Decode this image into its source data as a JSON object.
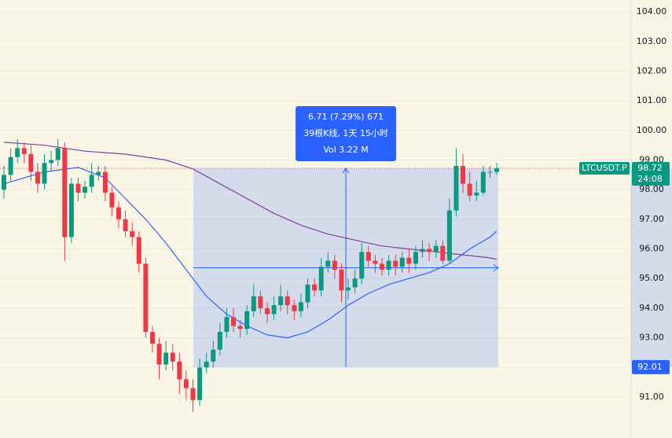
{
  "chart_data": {
    "type": "candlestick",
    "symbol": "LTCUSDT.P",
    "last_price": 98.72,
    "countdown": "24:08",
    "up_color": "#089981",
    "down_color": "#f23645",
    "open": [
      98.0,
      98.5,
      99.1,
      99.4,
      99.2,
      98.6,
      98.2,
      98.9,
      99.0,
      99.4,
      96.4,
      98.2,
      97.9,
      98.1,
      98.5,
      98.6,
      97.9,
      97.4,
      97.0,
      96.6,
      96.4,
      95.5,
      93.2,
      92.8,
      92.1,
      92.5,
      92.2,
      91.6,
      91.3,
      90.9,
      92.0,
      92.2,
      92.6,
      93.2,
      93.7,
      93.4,
      93.3,
      93.9,
      94.4,
      94.0,
      93.8,
      94.1,
      94.4,
      94.1,
      93.9,
      94.2,
      94.8,
      94.6,
      95.4,
      95.6,
      95.3,
      94.6,
      94.7,
      95.0,
      95.9,
      95.6,
      95.5,
      95.3,
      95.6,
      95.4,
      95.7,
      95.5,
      95.9,
      96.0,
      95.9,
      96.1,
      95.6,
      97.3,
      98.8,
      98.2,
      97.8,
      97.9,
      98.6,
      98.6
    ],
    "close": [
      98.5,
      99.1,
      99.4,
      99.2,
      98.6,
      98.2,
      98.9,
      99.0,
      99.4,
      96.4,
      98.2,
      97.9,
      98.1,
      98.5,
      98.6,
      97.9,
      97.4,
      97.0,
      96.6,
      96.4,
      95.5,
      93.2,
      92.8,
      92.1,
      92.5,
      92.2,
      91.6,
      91.3,
      90.9,
      92.0,
      92.2,
      92.6,
      93.2,
      93.7,
      93.4,
      93.3,
      93.9,
      94.4,
      94.0,
      93.8,
      94.1,
      94.4,
      94.1,
      93.9,
      94.2,
      94.8,
      94.6,
      95.4,
      95.6,
      95.3,
      94.6,
      94.7,
      95.0,
      95.9,
      95.6,
      95.5,
      95.3,
      95.6,
      95.4,
      95.7,
      95.5,
      95.9,
      96.0,
      95.9,
      96.1,
      95.6,
      97.3,
      98.8,
      98.2,
      97.8,
      97.9,
      98.6,
      98.6,
      98.72
    ],
    "high": [
      98.8,
      99.4,
      99.7,
      99.6,
      99.5,
      98.9,
      99.2,
      99.3,
      99.7,
      99.6,
      98.4,
      98.4,
      98.3,
      98.9,
      98.8,
      98.8,
      98.1,
      97.6,
      97.3,
      96.9,
      96.6,
      95.7,
      93.4,
      93.0,
      92.9,
      92.8,
      92.5,
      91.9,
      91.6,
      92.3,
      92.5,
      92.9,
      93.5,
      94.0,
      94.0,
      93.6,
      94.1,
      94.8,
      94.6,
      94.2,
      94.4,
      94.8,
      94.6,
      94.3,
      94.5,
      95.0,
      95.0,
      95.7,
      95.9,
      95.8,
      95.5,
      95.0,
      95.3,
      96.2,
      96.1,
      95.8,
      95.7,
      95.8,
      95.8,
      95.9,
      96.0,
      96.1,
      96.3,
      96.2,
      96.3,
      96.3,
      97.7,
      99.4,
      99.2,
      98.6,
      98.3,
      98.8,
      98.8,
      98.9
    ],
    "low": [
      97.7,
      98.3,
      98.9,
      98.9,
      98.3,
      97.9,
      98.0,
      98.6,
      98.8,
      95.6,
      96.2,
      97.6,
      97.7,
      97.9,
      98.3,
      97.6,
      97.1,
      96.7,
      96.4,
      96.1,
      95.2,
      93.0,
      92.5,
      91.6,
      91.9,
      91.9,
      91.1,
      90.9,
      90.5,
      90.7,
      91.8,
      92.0,
      92.4,
      93.0,
      93.2,
      93.0,
      93.1,
      93.7,
      93.8,
      93.5,
      93.6,
      93.9,
      93.8,
      93.6,
      93.7,
      94.0,
      94.4,
      94.4,
      95.2,
      95.0,
      94.2,
      94.3,
      94.5,
      94.8,
      95.4,
      95.2,
      95.1,
      95.1,
      95.1,
      95.2,
      95.2,
      95.3,
      95.7,
      95.6,
      95.7,
      95.5,
      95.5,
      97.1,
      97.9,
      97.6,
      97.6,
      97.8,
      98.4,
      98.5
    ],
    "series": [
      {
        "color": "#2962ff",
        "x": [
          0,
          6,
          11,
          15,
          18,
          21,
          24,
          27,
          30,
          33,
          36,
          39,
          42,
          45,
          48,
          51,
          54,
          57,
          60,
          63,
          66,
          69,
          72,
          73
        ],
        "values": [
          98.2,
          98.6,
          98.75,
          98.4,
          97.7,
          97.0,
          96.2,
          95.3,
          94.4,
          93.8,
          93.4,
          93.1,
          93.0,
          93.2,
          93.6,
          94.1,
          94.5,
          94.8,
          95.0,
          95.2,
          95.5,
          96.0,
          96.4,
          96.6
        ]
      },
      {
        "color": "#7e3fa0",
        "x": [
          0,
          6,
          12,
          18,
          24,
          28,
          32,
          36,
          40,
          44,
          48,
          52,
          56,
          60,
          64,
          68,
          72,
          73
        ],
        "values": [
          99.6,
          99.5,
          99.3,
          99.2,
          99.0,
          98.7,
          98.2,
          97.7,
          97.2,
          96.8,
          96.5,
          96.3,
          96.1,
          96.0,
          95.9,
          95.8,
          95.7,
          95.65
        ]
      }
    ],
    "measure": {
      "low": 92.01,
      "lines": [
        "6.71 (7.29%) 671",
        "39根K线, 1天 15小时",
        "Vol 3.22 M"
      ],
      "color": "#2962ff"
    },
    "ylim": [
      89.62,
      104.4
    ],
    "yticks": [
      {
        "value": 91,
        "label": "91.00"
      },
      {
        "value": 92,
        "label": "92.00"
      },
      {
        "value": 93,
        "label": "93.00"
      },
      {
        "value": 94,
        "label": "94.00"
      },
      {
        "value": 95,
        "label": "95.00"
      },
      {
        "value": 96,
        "label": "96.00"
      },
      {
        "value": 97,
        "label": "97.00"
      },
      {
        "value": 98,
        "label": "98.00"
      },
      {
        "value": 99,
        "label": "99.00"
      },
      {
        "value": 100,
        "label": "100.00"
      },
      {
        "value": 101,
        "label": "101.00"
      },
      {
        "value": 102,
        "label": "102.00"
      },
      {
        "value": 103,
        "label": "103.00"
      },
      {
        "value": 104,
        "label": "104.00"
      }
    ],
    "grid": true
  }
}
